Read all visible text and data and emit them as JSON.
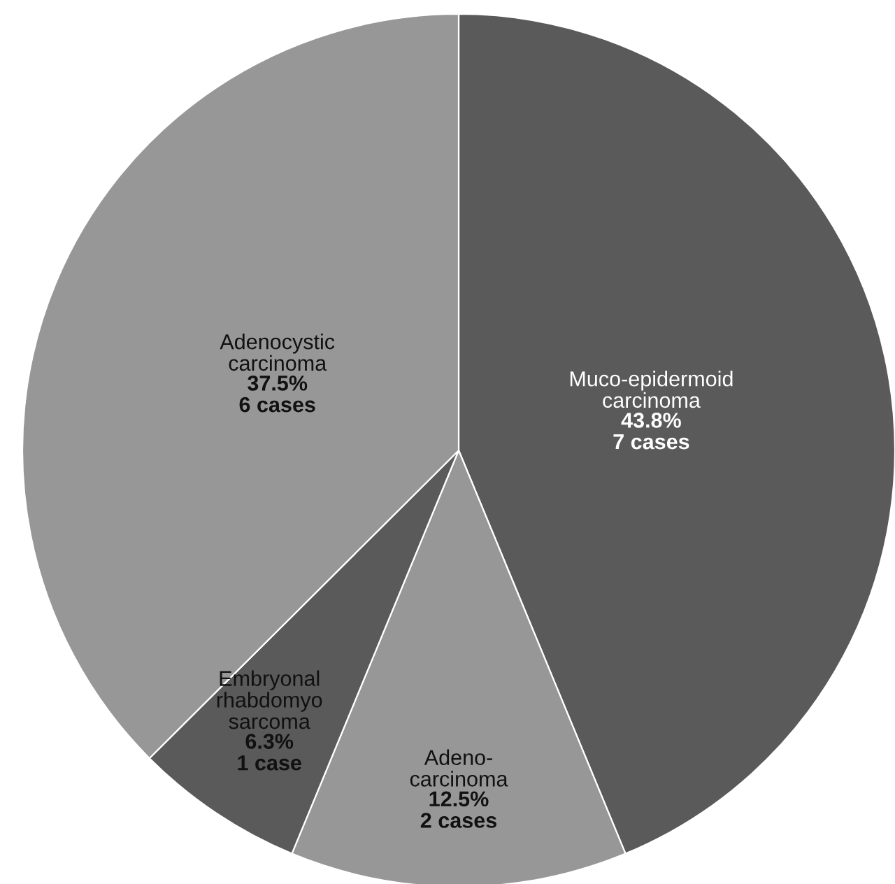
{
  "chart_data": {
    "type": "pie",
    "categories": [
      "Muco-epidermoid\ncarcinoma",
      "Adeno-\ncarcinoma",
      "Embryonal\nrhabdomyo\nsarcoma",
      "Adenocystic\ncarcinoma"
    ],
    "values": [
      43.8,
      12.5,
      6.3,
      37.5
    ],
    "colors": [
      "#5a5a5a",
      "#979797",
      "#5a5a5a",
      "#979797"
    ],
    "value_labels": [
      "43.8%\n7 cases",
      "12.5%\n2 cases",
      "6.3%\n1 case",
      "37.5%\n6 cases"
    ],
    "legend": false
  }
}
